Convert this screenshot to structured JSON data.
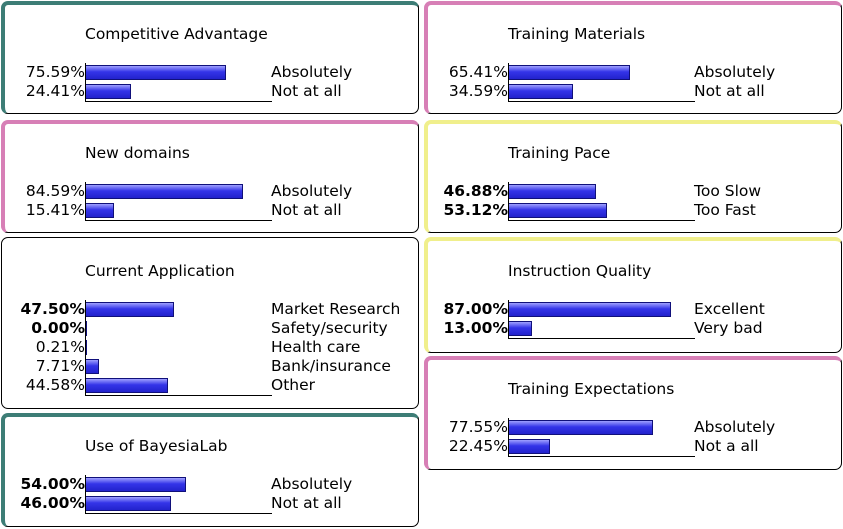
{
  "monitors": [
    {
      "id": "competitive-advantage",
      "title": "Competitive Advantage",
      "accent": "#3d7d76",
      "rows": [
        {
          "pct": "75.59%",
          "value": 75.59,
          "bold": false,
          "label": "Absolutely"
        },
        {
          "pct": "24.41%",
          "value": 24.41,
          "bold": false,
          "label": "Not at all"
        }
      ]
    },
    {
      "id": "new-domains",
      "title": "New domains",
      "accent": "#d77fb6",
      "rows": [
        {
          "pct": "84.59%",
          "value": 84.59,
          "bold": false,
          "label": "Absolutely"
        },
        {
          "pct": "15.41%",
          "value": 15.41,
          "bold": false,
          "label": "Not at all"
        }
      ]
    },
    {
      "id": "current-application",
      "title": "Current Application",
      "accent": "",
      "rows": [
        {
          "pct": "47.50%",
          "value": 47.5,
          "bold": true,
          "label": "Market Research"
        },
        {
          "pct": "0.00%",
          "value": 0.0,
          "bold": true,
          "label": "Safety/security"
        },
        {
          "pct": "0.21%",
          "value": 0.21,
          "bold": false,
          "label": "Health care"
        },
        {
          "pct": "7.71%",
          "value": 7.71,
          "bold": false,
          "label": "Bank/insurance"
        },
        {
          "pct": "44.58%",
          "value": 44.58,
          "bold": false,
          "label": "Other"
        }
      ]
    },
    {
      "id": "use-of-bayesialab",
      "title": "Use of BayesiaLab",
      "accent": "#3d7d76",
      "rows": [
        {
          "pct": "54.00%",
          "value": 54.0,
          "bold": true,
          "label": "Absolutely"
        },
        {
          "pct": "46.00%",
          "value": 46.0,
          "bold": true,
          "label": "Not at all"
        }
      ]
    },
    {
      "id": "training-materials",
      "title": "Training Materials",
      "accent": "#d77fb6",
      "rows": [
        {
          "pct": "65.41%",
          "value": 65.41,
          "bold": false,
          "label": "Absolutely"
        },
        {
          "pct": "34.59%",
          "value": 34.59,
          "bold": false,
          "label": "Not at all"
        }
      ]
    },
    {
      "id": "training-pace",
      "title": "Training Pace",
      "accent": "#f0ef8c",
      "rows": [
        {
          "pct": "46.88%",
          "value": 46.88,
          "bold": true,
          "label": "Too Slow"
        },
        {
          "pct": "53.12%",
          "value": 53.12,
          "bold": true,
          "label": "Too Fast"
        }
      ]
    },
    {
      "id": "instruction-quality",
      "title": "Instruction Quality",
      "accent": "#f0ef8c",
      "rows": [
        {
          "pct": "87.00%",
          "value": 87.0,
          "bold": true,
          "label": "Excellent"
        },
        {
          "pct": "13.00%",
          "value": 13.0,
          "bold": true,
          "label": "Very bad"
        }
      ]
    },
    {
      "id": "training-expectations",
      "title": "Training Expectations",
      "accent": "#d77fb6",
      "rows": [
        {
          "pct": "77.55%",
          "value": 77.55,
          "bold": false,
          "label": "Absolutely"
        },
        {
          "pct": "22.45%",
          "value": 22.45,
          "bold": false,
          "label": "Not a all"
        }
      ]
    }
  ]
}
